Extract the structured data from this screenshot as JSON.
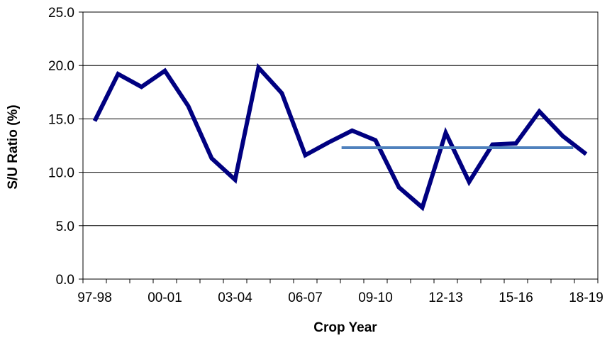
{
  "chart_data": {
    "type": "line",
    "title": "",
    "xlabel": "Crop Year",
    "ylabel": "S/U Ratio (%)",
    "ylim": [
      0,
      25
    ],
    "yticks": [
      "0.0",
      "5.0",
      "10.0",
      "15.0",
      "20.0",
      "25.0"
    ],
    "x_tick_labels": [
      "97-98",
      "00-01",
      "03-04",
      "06-07",
      "09-10",
      "12-13",
      "15-16",
      "18-19"
    ],
    "categories": [
      "97-98",
      "98-99",
      "99-00",
      "00-01",
      "01-02",
      "02-03",
      "03-04",
      "04-05",
      "05-06",
      "06-07",
      "07-08",
      "08-09",
      "09-10",
      "10-11",
      "11-12",
      "12-13",
      "13-14",
      "14-15",
      "15-16",
      "16-17",
      "17-18",
      "18-19"
    ],
    "grid": "horizontal",
    "legend": "none",
    "series": [
      {
        "values": [
          14.8,
          19.2,
          18.0,
          19.5,
          16.2,
          11.3,
          9.3,
          19.8,
          17.4,
          11.6,
          12.8,
          13.9,
          13.0,
          8.6,
          6.7,
          13.7,
          9.1,
          12.6,
          12.7,
          15.7,
          13.4,
          11.7
        ],
        "color": "#000080"
      },
      {
        "type": "hline",
        "from": "08-09",
        "to": "17-18",
        "value": 12.3,
        "color": "#4F81BD"
      }
    ]
  }
}
